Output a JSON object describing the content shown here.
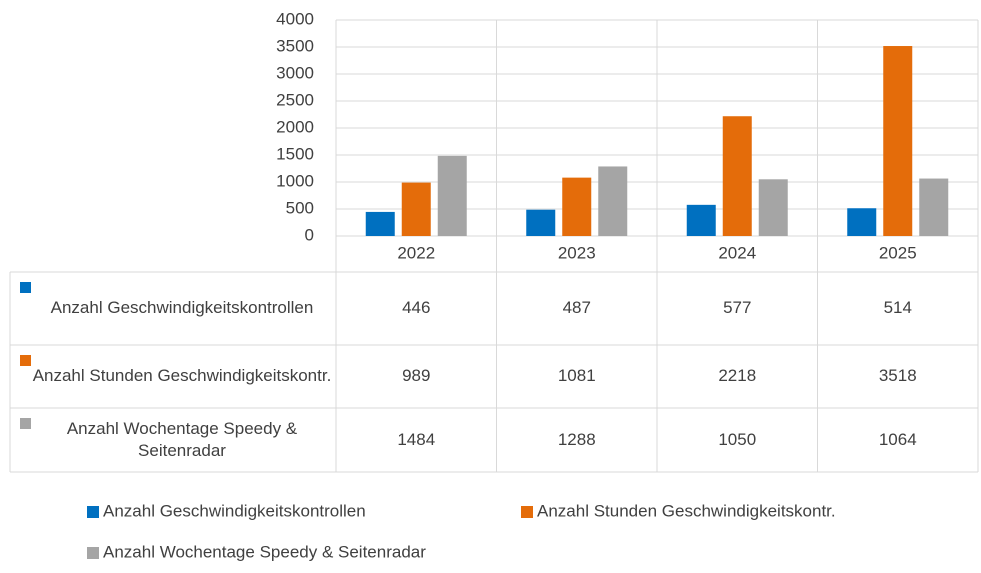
{
  "chart_data": {
    "type": "bar",
    "categories": [
      "2022",
      "2023",
      "2024",
      "2025"
    ],
    "series": [
      {
        "name": "Anzahl Geschwindigkeitskontrollen",
        "color": "#0070c0",
        "values": [
          446,
          487,
          577,
          514
        ]
      },
      {
        "name": "Anzahl Stunden Geschwindigkeitskontr.",
        "color": "#e46c0a",
        "values": [
          989,
          1081,
          2218,
          3518
        ]
      },
      {
        "name": "Anzahl Wochentage Speedy & Seitenradar",
        "color": "#a5a5a5",
        "values": [
          1484,
          1288,
          1050,
          1064
        ]
      }
    ],
    "ylim": [
      0,
      4000
    ],
    "yticks": [
      0,
      500,
      1000,
      1500,
      2000,
      2500,
      3000,
      3500,
      4000
    ],
    "grid": true,
    "legend": "bottom",
    "data_table": true
  }
}
